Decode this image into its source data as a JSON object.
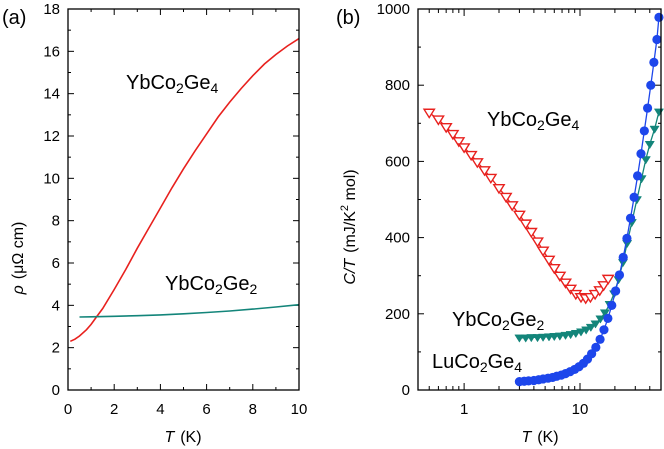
{
  "chart_data": [
    {
      "type": "line",
      "panel_label": "(a)",
      "title": "",
      "xlabel": {
        "symbol": "T",
        "unit": "(K)"
      },
      "ylabel": {
        "symbol": "ρ",
        "unit": "(μΩ cm)"
      },
      "xlim": [
        0,
        10
      ],
      "ylim": [
        0,
        18
      ],
      "xticks": [
        "0",
        "2",
        "4",
        "6",
        "8",
        "10"
      ],
      "yticks": [
        "0",
        "2",
        "4",
        "6",
        "8",
        "10",
        "12",
        "14",
        "16",
        "18"
      ],
      "series": [
        {
          "name": "YbCo2Ge4",
          "label": {
            "base": "YbCo",
            "sub1": "2",
            "mid": "Ge",
            "sub2": "4"
          },
          "color": "#e8211e",
          "x": [
            0.1,
            0.3,
            0.5,
            0.8,
            1.0,
            1.2,
            1.5,
            2.0,
            2.5,
            3.0,
            3.5,
            4.0,
            4.5,
            5.0,
            5.5,
            6.0,
            6.5,
            7.0,
            7.5,
            8.0,
            8.5,
            9.0,
            9.5,
            10.0
          ],
          "y": [
            2.3,
            2.4,
            2.55,
            2.85,
            3.1,
            3.4,
            3.85,
            4.75,
            5.7,
            6.7,
            7.65,
            8.6,
            9.55,
            10.45,
            11.3,
            12.1,
            12.9,
            13.6,
            14.25,
            14.85,
            15.4,
            15.85,
            16.25,
            16.6
          ]
        },
        {
          "name": "YbCo2Ge2",
          "label": {
            "base": "YbCo",
            "sub1": "2",
            "mid": "Ge",
            "sub2": "2"
          },
          "color": "#13857a",
          "x": [
            0.5,
            1.0,
            2.0,
            3.0,
            4.0,
            5.0,
            6.0,
            7.0,
            8.0,
            9.0,
            10.0
          ],
          "y": [
            3.45,
            3.46,
            3.48,
            3.51,
            3.55,
            3.6,
            3.66,
            3.73,
            3.82,
            3.92,
            4.03
          ]
        }
      ]
    },
    {
      "type": "scatter",
      "panel_label": "(b)",
      "title": "",
      "xscale": "log",
      "xlabel": {
        "symbol": "T",
        "unit": "(K)"
      },
      "ylabel": {
        "symbol": "C/T",
        "unit_pre": "(mJ/K",
        "unit_sup": "2",
        "unit_post": " mol)"
      },
      "xlim": [
        0.4,
        50
      ],
      "ylim": [
        0,
        1000
      ],
      "xticks": [
        "1",
        "10"
      ],
      "yticks": [
        "0",
        "200",
        "400",
        "600",
        "800",
        "1000"
      ],
      "series": [
        {
          "name": "YbCo2Ge4",
          "label": {
            "base": "YbCo",
            "sub1": "2",
            "mid": "Ge",
            "sub2": "4"
          },
          "color": "#e8211e",
          "marker": "triangle-down-open",
          "x": [
            0.5,
            0.6,
            0.7,
            0.8,
            0.9,
            1.0,
            1.15,
            1.3,
            1.5,
            1.7,
            2.0,
            2.3,
            2.6,
            3.0,
            3.4,
            3.8,
            4.3,
            4.8,
            5.4,
            6.0,
            6.7,
            7.5,
            8.3,
            9.2,
            10.2,
            11.2,
            12.3,
            13.5,
            14.8,
            16.0,
            17.5
          ],
          "y": [
            728,
            710,
            690,
            672,
            653,
            637,
            617,
            598,
            577,
            557,
            530,
            507,
            485,
            460,
            437,
            415,
            390,
            366,
            342,
            320,
            300,
            282,
            266,
            252,
            244,
            241,
            244,
            252,
            262,
            275,
            292
          ]
        },
        {
          "name": "YbCo2Ge2",
          "label": {
            "base": "YbCo",
            "sub1": "2",
            "mid": "Ge",
            "sub2": "2"
          },
          "color": "#13857a",
          "marker": "triangle-down-filled",
          "x": [
            3.0,
            3.4,
            3.8,
            4.3,
            4.8,
            5.4,
            6.0,
            6.7,
            7.5,
            8.3,
            9.2,
            10.2,
            11.3,
            12.4,
            13.6,
            15.0,
            16.4,
            18.0,
            19.7,
            21.5,
            23.5,
            25.5,
            28.0,
            31.0,
            34.0,
            37.0,
            40.0,
            44.0,
            48.0
          ],
          "y": [
            137,
            137,
            138,
            138,
            139,
            140,
            141,
            142,
            144,
            146,
            149,
            153,
            158,
            165,
            174,
            187,
            203,
            225,
            253,
            290,
            335,
            385,
            440,
            500,
            555,
            605,
            645,
            685,
            730
          ]
        },
        {
          "name": "LuCo2Ge4",
          "label": {
            "base": "LuCo",
            "sub1": "2",
            "mid": "Ge",
            "sub2": "4"
          },
          "color": "#1d46eb",
          "marker": "circle-filled",
          "connected": true,
          "x": [
            3.0,
            3.3,
            3.6,
            4.0,
            4.4,
            4.8,
            5.3,
            5.8,
            6.3,
            6.9,
            7.5,
            8.2,
            9.0,
            9.8,
            10.7,
            11.6,
            12.6,
            13.7,
            14.9,
            16.1,
            17.4,
            18.8,
            20.3,
            21.9,
            23.6,
            25.4,
            27.3,
            29.3,
            31.4,
            33.6,
            35.9,
            38.3,
            40.8,
            43.4,
            46.1,
            48.0
          ],
          "y": [
            22,
            23,
            24,
            25,
            27,
            29,
            31,
            33,
            36,
            39,
            43,
            48,
            54,
            61,
            70,
            81,
            95,
            112,
            133,
            158,
            188,
            222,
            260,
            302,
            348,
            398,
            451,
            506,
            562,
            620,
            680,
            740,
            800,
            860,
            920,
            978
          ]
        }
      ]
    }
  ]
}
